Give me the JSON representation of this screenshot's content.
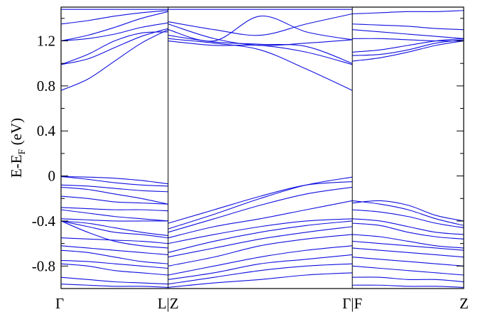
{
  "chart_data": {
    "type": "line",
    "title": "",
    "ylabel": {
      "main": "E-E",
      "subscript": "F",
      "unit": " (eV)"
    },
    "xlabel": "",
    "ylim": [
      -1.0,
      1.5
    ],
    "yticks": [
      -0.8,
      -0.4,
      0,
      0.4,
      0.8,
      1.2
    ],
    "ytick_labels": [
      "-0.8",
      "-0.4",
      "0",
      "0.4",
      "0.8",
      "1.2"
    ],
    "grid": false,
    "line_color": "#1010e0",
    "kpath": {
      "labels": [
        "Γ",
        "L|Z",
        "Γ|F",
        "Z"
      ],
      "positions": [
        0,
        1,
        2.72,
        3.76
      ],
      "separators": [
        1,
        2.72
      ]
    },
    "series": [
      {
        "x": [
          0,
          0.25,
          0.5,
          0.75,
          1.0
        ],
        "y": [
          -0.005,
          -0.01,
          -0.02,
          -0.04,
          -0.07
        ]
      },
      {
        "x": [
          0,
          0.25,
          0.5,
          0.75,
          1.0
        ],
        "y": [
          -0.005,
          -0.03,
          -0.06,
          -0.08,
          -0.09
        ]
      },
      {
        "x": [
          0,
          0.25,
          0.5,
          0.75,
          1.0
        ],
        "y": [
          -0.08,
          -0.09,
          -0.11,
          -0.13,
          -0.14
        ]
      },
      {
        "x": [
          0,
          0.25,
          0.5,
          0.75,
          1.0
        ],
        "y": [
          -0.1,
          -0.12,
          -0.16,
          -0.2,
          -0.25
        ]
      },
      {
        "x": [
          0,
          0.25,
          0.5,
          0.75,
          1.0
        ],
        "y": [
          -0.18,
          -0.2,
          -0.23,
          -0.24,
          -0.25
        ]
      },
      {
        "x": [
          0,
          0.25,
          0.5,
          0.75,
          1.0
        ],
        "y": [
          -0.28,
          -0.29,
          -0.3,
          -0.3,
          -0.31
        ]
      },
      {
        "x": [
          0,
          0.25,
          0.5,
          0.75,
          1.0
        ],
        "y": [
          -0.3,
          -0.33,
          -0.36,
          -0.38,
          -0.4
        ]
      },
      {
        "x": [
          0,
          0.25,
          0.5,
          0.75,
          1.0
        ],
        "y": [
          -0.38,
          -0.39,
          -0.4,
          -0.4,
          -0.4
        ]
      },
      {
        "x": [
          0,
          0.25,
          0.5,
          0.75,
          1.0
        ],
        "y": [
          -0.4,
          -0.42,
          -0.46,
          -0.5,
          -0.53
        ]
      },
      {
        "x": [
          0,
          0.25,
          0.5,
          0.75,
          1.0
        ],
        "y": [
          -0.4,
          -0.45,
          -0.5,
          -0.52,
          -0.55
        ]
      },
      {
        "x": [
          0,
          0.25,
          0.5,
          0.75,
          1.0
        ],
        "y": [
          -0.4,
          -0.5,
          -0.58,
          -0.62,
          -0.64
        ]
      },
      {
        "x": [
          0,
          0.25,
          0.5,
          0.75,
          1.0
        ],
        "y": [
          -0.55,
          -0.56,
          -0.57,
          -0.58,
          -0.6
        ]
      },
      {
        "x": [
          0,
          0.25,
          0.5,
          0.75,
          1.0
        ],
        "y": [
          -0.62,
          -0.64,
          -0.66,
          -0.68,
          -0.7
        ]
      },
      {
        "x": [
          0,
          0.25,
          0.5,
          0.75,
          1.0
        ],
        "y": [
          -0.66,
          -0.68,
          -0.72,
          -0.76,
          -0.78
        ]
      },
      {
        "x": [
          0,
          0.25,
          0.5,
          0.75,
          1.0
        ],
        "y": [
          -0.75,
          -0.76,
          -0.78,
          -0.8,
          -0.82
        ]
      },
      {
        "x": [
          0,
          0.25,
          0.5,
          0.75,
          1.0
        ],
        "y": [
          -0.78,
          -0.8,
          -0.84,
          -0.86,
          -0.88
        ]
      },
      {
        "x": [
          0,
          0.25,
          0.5,
          0.75,
          1.0
        ],
        "y": [
          -0.9,
          -0.92,
          -0.94,
          -0.95,
          -0.96
        ]
      },
      {
        "x": [
          0,
          0.25,
          0.5,
          0.75,
          1.0
        ],
        "y": [
          -0.96,
          -0.97,
          -0.98,
          -0.98,
          -0.99
        ]
      },
      {
        "x": [
          0,
          0.25,
          0.5,
          0.75,
          1.0
        ],
        "y": [
          0.76,
          0.86,
          1.02,
          1.18,
          1.3
        ]
      },
      {
        "x": [
          0,
          0.25,
          0.5,
          0.75,
          1.0
        ],
        "y": [
          0.99,
          1.04,
          1.14,
          1.24,
          1.31
        ]
      },
      {
        "x": [
          0,
          0.25,
          0.5,
          0.75,
          1.0
        ],
        "y": [
          0.99,
          1.08,
          1.2,
          1.27,
          1.28
        ]
      },
      {
        "x": [
          0,
          0.25,
          0.5,
          0.75,
          1.0
        ],
        "y": [
          1.2,
          1.22,
          1.26,
          1.32,
          1.36
        ]
      },
      {
        "x": [
          0,
          0.25,
          0.5,
          0.75,
          1.0
        ],
        "y": [
          1.2,
          1.25,
          1.32,
          1.4,
          1.46
        ]
      },
      {
        "x": [
          0,
          0.25,
          0.5,
          0.75,
          1.0
        ],
        "y": [
          1.35,
          1.38,
          1.42,
          1.45,
          1.47
        ]
      },
      {
        "x": [
          0,
          0.25,
          0.5,
          0.75,
          1.0
        ],
        "y": [
          1.48,
          1.48,
          1.48,
          1.48,
          1.48
        ]
      },
      {
        "x": [
          1.0,
          1.43,
          1.86,
          2.29,
          2.72
        ],
        "y": [
          -0.47,
          -0.34,
          -0.2,
          -0.08,
          -0.01
        ]
      },
      {
        "x": [
          1.0,
          1.43,
          1.86,
          2.29,
          2.72
        ],
        "y": [
          -0.42,
          -0.3,
          -0.18,
          -0.08,
          -0.05
        ]
      },
      {
        "x": [
          1.0,
          1.43,
          1.86,
          2.29,
          2.72
        ],
        "y": [
          -0.5,
          -0.38,
          -0.26,
          -0.16,
          -0.1
        ]
      },
      {
        "x": [
          1.0,
          1.43,
          1.86,
          2.29,
          2.72
        ],
        "y": [
          -0.55,
          -0.45,
          -0.38,
          -0.3,
          -0.22
        ]
      },
      {
        "x": [
          1.0,
          1.43,
          1.86,
          2.29,
          2.72
        ],
        "y": [
          -0.6,
          -0.52,
          -0.45,
          -0.4,
          -0.38
        ]
      },
      {
        "x": [
          1.0,
          1.43,
          1.86,
          2.29,
          2.72
        ],
        "y": [
          -0.68,
          -0.58,
          -0.5,
          -0.44,
          -0.4
        ]
      },
      {
        "x": [
          1.0,
          1.43,
          1.86,
          2.29,
          2.72
        ],
        "y": [
          -0.72,
          -0.64,
          -0.56,
          -0.5,
          -0.45
        ]
      },
      {
        "x": [
          1.0,
          1.43,
          1.86,
          2.29,
          2.72
        ],
        "y": [
          -0.8,
          -0.72,
          -0.62,
          -0.56,
          -0.52
        ]
      },
      {
        "x": [
          1.0,
          1.43,
          1.86,
          2.29,
          2.72
        ],
        "y": [
          -0.88,
          -0.8,
          -0.72,
          -0.66,
          -0.62
        ]
      },
      {
        "x": [
          1.0,
          1.43,
          1.86,
          2.29,
          2.72
        ],
        "y": [
          -0.92,
          -0.86,
          -0.78,
          -0.74,
          -0.7
        ]
      },
      {
        "x": [
          1.0,
          1.43,
          1.86,
          2.29,
          2.72
        ],
        "y": [
          -0.96,
          -0.9,
          -0.84,
          -0.8,
          -0.78
        ]
      },
      {
        "x": [
          1.0,
          1.43,
          1.86,
          2.29,
          2.72
        ],
        "y": [
          -0.99,
          -0.95,
          -0.92,
          -0.88,
          -0.86
        ]
      },
      {
        "x": [
          1.0,
          1.43,
          1.86,
          2.29,
          2.72
        ],
        "y": [
          1.22,
          1.18,
          1.12,
          0.95,
          0.76
        ]
      },
      {
        "x": [
          1.0,
          1.43,
          1.86,
          2.29,
          2.72
        ],
        "y": [
          1.2,
          1.16,
          1.16,
          1.1,
          0.99
        ]
      },
      {
        "x": [
          1.0,
          1.43,
          1.86,
          2.29,
          2.72
        ],
        "y": [
          1.25,
          1.19,
          1.17,
          1.15,
          1.0
        ]
      },
      {
        "x": [
          1.0,
          1.43,
          1.86,
          2.29,
          2.72
        ],
        "y": [
          1.35,
          1.22,
          1.16,
          1.18,
          1.21
        ]
      },
      {
        "x": [
          1.0,
          1.43,
          1.86,
          2.29,
          2.72
        ],
        "y": [
          1.3,
          1.2,
          1.42,
          1.28,
          1.21
        ]
      },
      {
        "x": [
          1.0,
          1.43,
          1.86,
          2.29,
          2.72
        ],
        "y": [
          1.37,
          1.3,
          1.25,
          1.35,
          1.44
        ]
      },
      {
        "x": [
          1.0,
          1.43,
          1.86,
          2.29,
          2.72
        ],
        "y": [
          1.48,
          1.48,
          1.48,
          1.48,
          1.48
        ]
      },
      {
        "x": [
          2.72,
          2.98,
          3.24,
          3.5,
          3.76
        ],
        "y": [
          -0.22,
          -0.25,
          -0.3,
          -0.38,
          -0.44
        ]
      },
      {
        "x": [
          2.72,
          2.98,
          3.24,
          3.5,
          3.76
        ],
        "y": [
          -0.24,
          -0.22,
          -0.26,
          -0.35,
          -0.4
        ]
      },
      {
        "x": [
          2.72,
          2.98,
          3.24,
          3.5,
          3.76
        ],
        "y": [
          -0.3,
          -0.32,
          -0.36,
          -0.42,
          -0.46
        ]
      },
      {
        "x": [
          2.72,
          2.98,
          3.24,
          3.5,
          3.76
        ],
        "y": [
          -0.38,
          -0.4,
          -0.45,
          -0.5,
          -0.52
        ]
      },
      {
        "x": [
          2.72,
          2.98,
          3.24,
          3.5,
          3.76
        ],
        "y": [
          -0.42,
          -0.44,
          -0.5,
          -0.54,
          -0.56
        ]
      },
      {
        "x": [
          2.72,
          2.98,
          3.24,
          3.5,
          3.76
        ],
        "y": [
          -0.52,
          -0.54,
          -0.58,
          -0.62,
          -0.64
        ]
      },
      {
        "x": [
          2.72,
          2.98,
          3.24,
          3.5,
          3.76
        ],
        "y": [
          -0.58,
          -0.6,
          -0.62,
          -0.64,
          -0.66
        ]
      },
      {
        "x": [
          2.72,
          2.98,
          3.24,
          3.5,
          3.76
        ],
        "y": [
          -0.64,
          -0.66,
          -0.68,
          -0.7,
          -0.72
        ]
      },
      {
        "x": [
          2.72,
          2.98,
          3.24,
          3.5,
          3.76
        ],
        "y": [
          -0.72,
          -0.74,
          -0.76,
          -0.78,
          -0.8
        ]
      },
      {
        "x": [
          2.72,
          2.98,
          3.24,
          3.5,
          3.76
        ],
        "y": [
          -0.8,
          -0.82,
          -0.84,
          -0.86,
          -0.88
        ]
      },
      {
        "x": [
          2.72,
          2.98,
          3.24,
          3.5,
          3.76
        ],
        "y": [
          -0.9,
          -0.9,
          -0.92,
          -0.92,
          -0.94
        ]
      },
      {
        "x": [
          2.72,
          2.98,
          3.24,
          3.5,
          3.76
        ],
        "y": [
          -0.97,
          -0.97,
          -0.98,
          -0.98,
          -0.99
        ]
      },
      {
        "x": [
          2.72,
          2.98,
          3.24,
          3.5,
          3.76
        ],
        "y": [
          1.02,
          1.05,
          1.1,
          1.16,
          1.2
        ]
      },
      {
        "x": [
          2.72,
          2.98,
          3.24,
          3.5,
          3.76
        ],
        "y": [
          1.07,
          1.08,
          1.12,
          1.18,
          1.21
        ]
      },
      {
        "x": [
          2.72,
          2.98,
          3.24,
          3.5,
          3.76
        ],
        "y": [
          1.1,
          1.12,
          1.16,
          1.2,
          1.22
        ]
      },
      {
        "x": [
          2.72,
          2.98,
          3.24,
          3.5,
          3.76
        ],
        "y": [
          1.22,
          1.22,
          1.21,
          1.2,
          1.2
        ]
      },
      {
        "x": [
          2.72,
          2.98,
          3.24,
          3.5,
          3.76
        ],
        "y": [
          1.3,
          1.28,
          1.26,
          1.24,
          1.22
        ]
      },
      {
        "x": [
          2.72,
          2.98,
          3.24,
          3.5,
          3.76
        ],
        "y": [
          1.35,
          1.34,
          1.33,
          1.31,
          1.3
        ]
      },
      {
        "x": [
          2.72,
          2.98,
          3.24,
          3.5,
          3.76
        ],
        "y": [
          1.44,
          1.45,
          1.46,
          1.46,
          1.47
        ]
      }
    ]
  }
}
